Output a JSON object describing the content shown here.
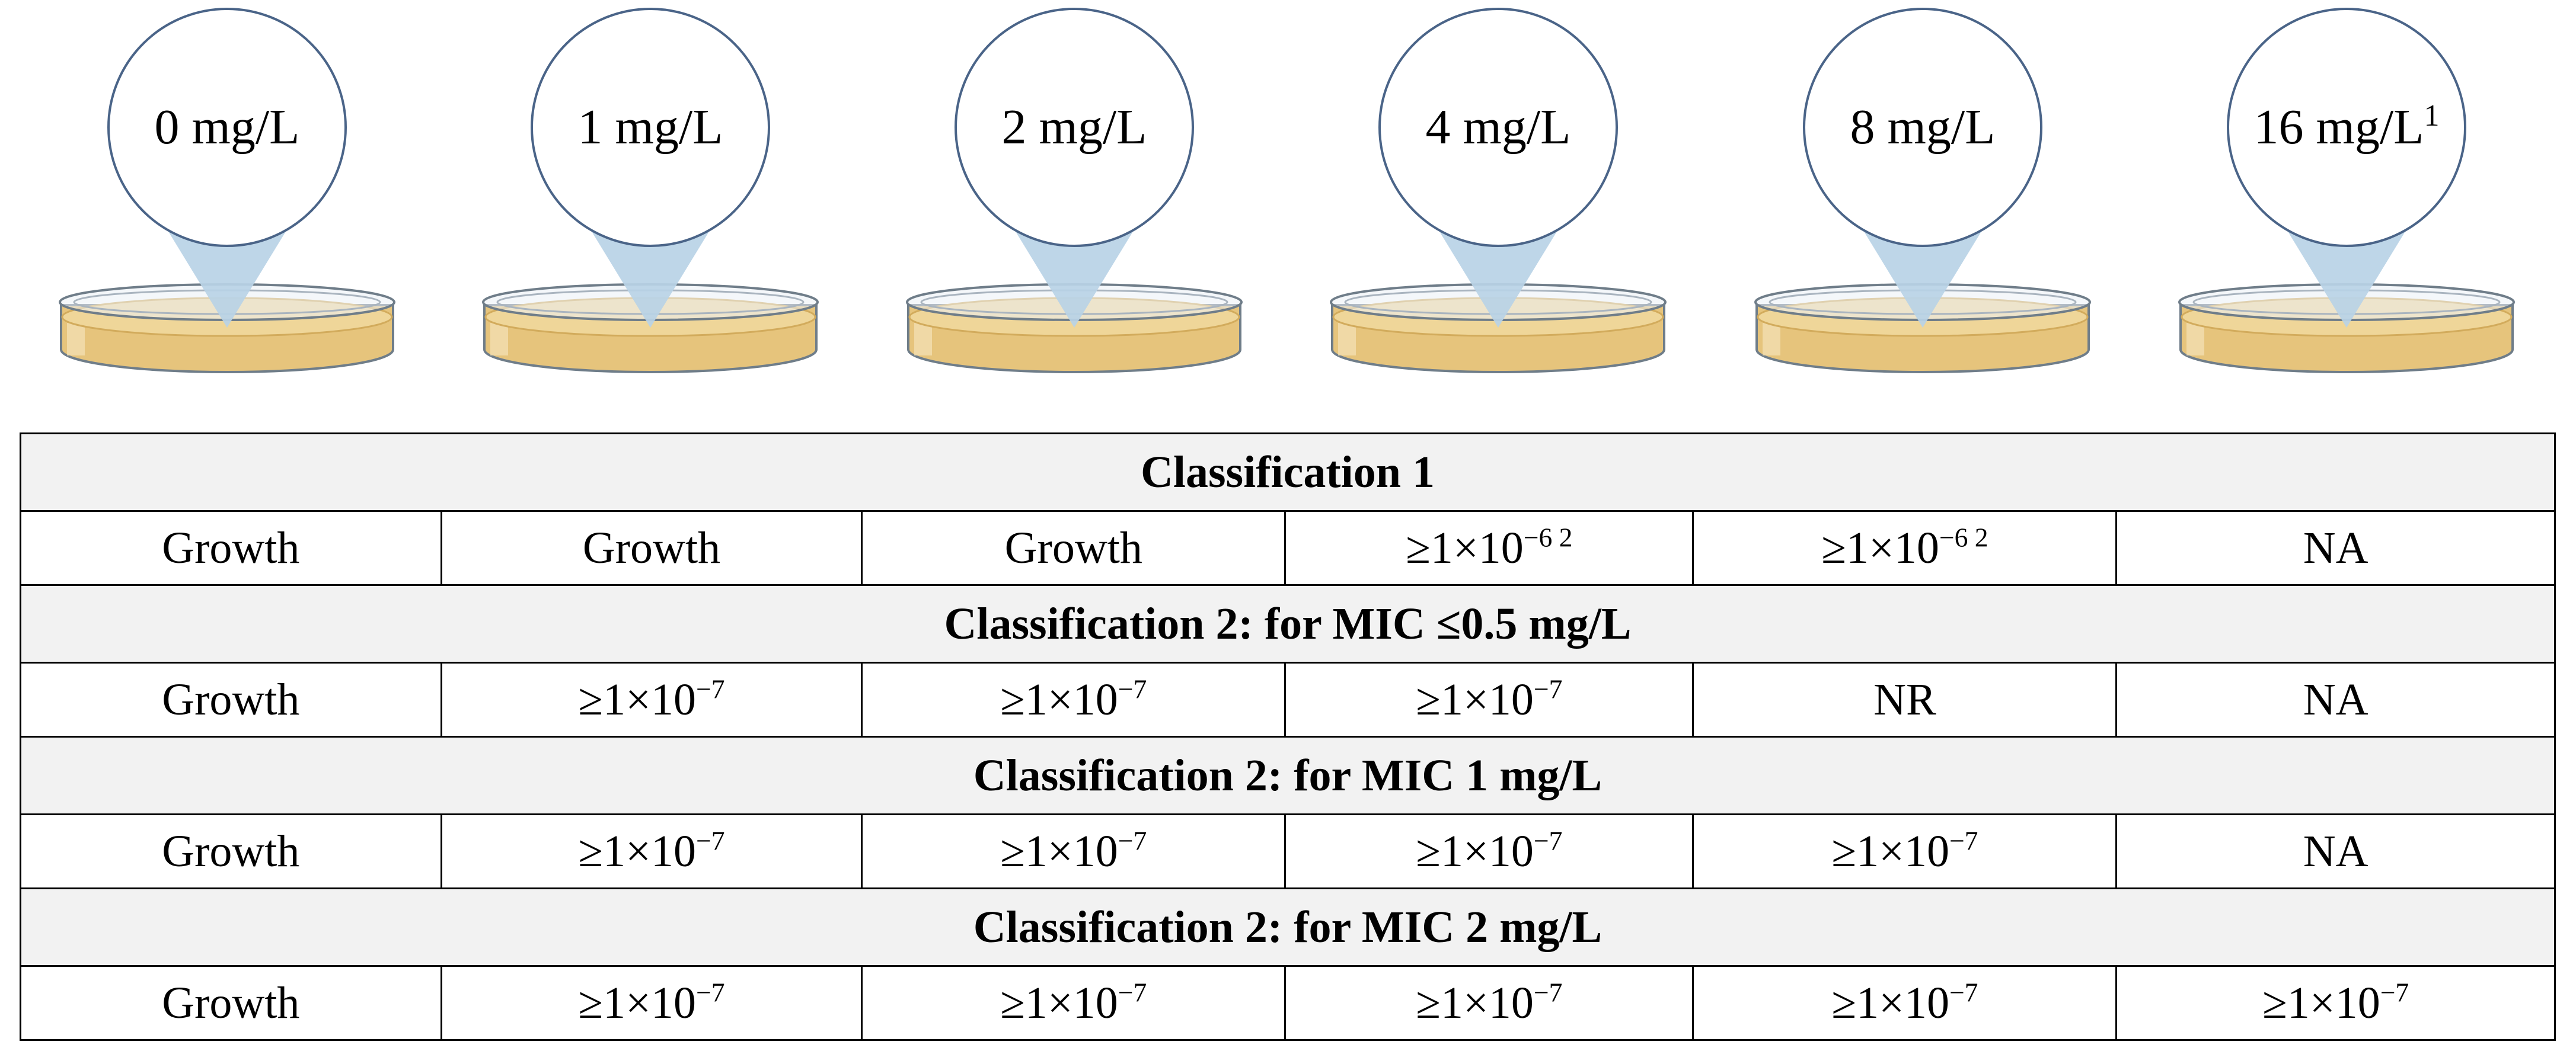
{
  "concentrations": [
    {
      "label": "0 mg/L",
      "note": ""
    },
    {
      "label": "1 mg/L",
      "note": ""
    },
    {
      "label": "2 mg/L",
      "note": ""
    },
    {
      "label": "4 mg/L",
      "note": ""
    },
    {
      "label": "8 mg/L",
      "note": ""
    },
    {
      "label": "16 mg/L",
      "note": "1"
    }
  ],
  "colors": {
    "bubble_stroke": "#4a6488",
    "pointer_fill": "#b8d2e6",
    "agar": "#e6c47c",
    "agar_dark": "#d2ab5c",
    "dish_rim": "#6f7d89",
    "header_bg": "#f2f2f2"
  },
  "table": {
    "sections": [
      {
        "title": "Classification 1",
        "values": [
          {
            "text": "Growth",
            "sup": ""
          },
          {
            "text": "Growth",
            "sup": ""
          },
          {
            "text": "Growth",
            "sup": ""
          },
          {
            "text": "≥1×10",
            "sup": "−6 2"
          },
          {
            "text": "≥1×10",
            "sup": "−6 2"
          },
          {
            "text": "NA",
            "sup": ""
          }
        ]
      },
      {
        "title": "Classification 2: for MIC ≤0.5 mg/L",
        "values": [
          {
            "text": "Growth",
            "sup": ""
          },
          {
            "text": "≥1×10",
            "sup": "−7"
          },
          {
            "text": "≥1×10",
            "sup": "−7"
          },
          {
            "text": "≥1×10",
            "sup": "−7"
          },
          {
            "text": "NR",
            "sup": ""
          },
          {
            "text": "NA",
            "sup": ""
          }
        ]
      },
      {
        "title": "Classification 2: for MIC 1 mg/L",
        "values": [
          {
            "text": "Growth",
            "sup": ""
          },
          {
            "text": "≥1×10",
            "sup": "−7"
          },
          {
            "text": "≥1×10",
            "sup": "−7"
          },
          {
            "text": "≥1×10",
            "sup": "−7"
          },
          {
            "text": "≥1×10",
            "sup": "−7"
          },
          {
            "text": "NA",
            "sup": ""
          }
        ]
      },
      {
        "title": "Classification 2: for MIC 2 mg/L",
        "values": [
          {
            "text": "Growth",
            "sup": ""
          },
          {
            "text": "≥1×10",
            "sup": "−7"
          },
          {
            "text": "≥1×10",
            "sup": "−7"
          },
          {
            "text": "≥1×10",
            "sup": "−7"
          },
          {
            "text": "≥1×10",
            "sup": "−7"
          },
          {
            "text": "≥1×10",
            "sup": "−7"
          }
        ]
      }
    ]
  }
}
